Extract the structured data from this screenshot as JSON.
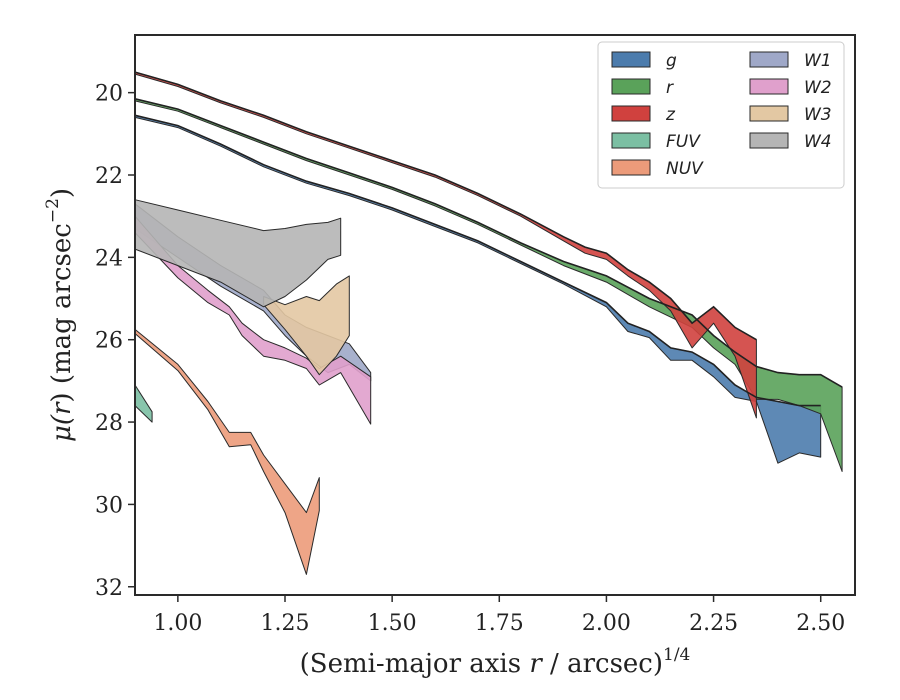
{
  "chart_data": {
    "type": "area",
    "xlabel_main": "(Semi-major axis ",
    "xlabel_var": "r",
    "xlabel_unit": " / arcsec)",
    "xlabel_exp": "1/4",
    "ylabel_mu": "μ(",
    "ylabel_var": "r",
    "ylabel_unit": ") (mag arcsec",
    "ylabel_exp": "−2",
    "ylabel_close": ")",
    "xlim": [
      0.9,
      2.58
    ],
    "ylim": [
      32.2,
      18.6
    ],
    "y_inverted": true,
    "xticks": [
      1.0,
      1.25,
      1.5,
      1.75,
      2.0,
      2.25,
      2.5
    ],
    "xtick_labels": [
      "1.00",
      "1.25",
      "1.50",
      "1.75",
      "2.00",
      "2.25",
      "2.50"
    ],
    "yticks": [
      20,
      22,
      24,
      26,
      28,
      30,
      32
    ],
    "ytick_labels": [
      "20",
      "22",
      "24",
      "26",
      "28",
      "30",
      "32"
    ],
    "legend_position": "top-right",
    "legend_columns": 2,
    "series": [
      {
        "name": "g",
        "color": "#4c7cad",
        "upper": [
          [
            0.9,
            20.55
          ],
          [
            1.0,
            20.8
          ],
          [
            1.1,
            21.25
          ],
          [
            1.2,
            21.75
          ],
          [
            1.3,
            22.15
          ],
          [
            1.4,
            22.45
          ],
          [
            1.5,
            22.8
          ],
          [
            1.6,
            23.2
          ],
          [
            1.7,
            23.6
          ],
          [
            1.8,
            24.1
          ],
          [
            1.9,
            24.6
          ],
          [
            2.0,
            25.1
          ],
          [
            2.05,
            25.6
          ],
          [
            2.1,
            25.8
          ],
          [
            2.15,
            26.2
          ],
          [
            2.2,
            26.3
          ],
          [
            2.25,
            26.6
          ],
          [
            2.3,
            27.1
          ],
          [
            2.35,
            27.4
          ],
          [
            2.4,
            27.5
          ],
          [
            2.45,
            27.6
          ],
          [
            2.5,
            27.6
          ]
        ],
        "lower": [
          [
            0.9,
            20.6
          ],
          [
            1.0,
            20.85
          ],
          [
            1.1,
            21.3
          ],
          [
            1.2,
            21.8
          ],
          [
            1.3,
            22.2
          ],
          [
            1.4,
            22.5
          ],
          [
            1.5,
            22.85
          ],
          [
            1.6,
            23.25
          ],
          [
            1.7,
            23.65
          ],
          [
            1.8,
            24.15
          ],
          [
            1.9,
            24.65
          ],
          [
            2.0,
            25.2
          ],
          [
            2.05,
            25.8
          ],
          [
            2.1,
            25.95
          ],
          [
            2.15,
            26.5
          ],
          [
            2.2,
            26.5
          ],
          [
            2.25,
            26.9
          ],
          [
            2.3,
            27.4
          ],
          [
            2.35,
            27.5
          ],
          [
            2.4,
            29.0
          ],
          [
            2.45,
            28.75
          ],
          [
            2.5,
            28.85
          ]
        ]
      },
      {
        "name": "r",
        "color": "#5aa25a",
        "upper": [
          [
            0.9,
            20.15
          ],
          [
            1.0,
            20.4
          ],
          [
            1.1,
            20.8
          ],
          [
            1.2,
            21.2
          ],
          [
            1.3,
            21.6
          ],
          [
            1.4,
            21.95
          ],
          [
            1.5,
            22.3
          ],
          [
            1.6,
            22.7
          ],
          [
            1.7,
            23.15
          ],
          [
            1.8,
            23.65
          ],
          [
            1.9,
            24.1
          ],
          [
            2.0,
            24.45
          ],
          [
            2.1,
            25.0
          ],
          [
            2.2,
            25.4
          ],
          [
            2.25,
            25.9
          ],
          [
            2.3,
            26.3
          ],
          [
            2.35,
            26.65
          ],
          [
            2.4,
            26.8
          ],
          [
            2.45,
            26.85
          ],
          [
            2.5,
            26.85
          ],
          [
            2.55,
            27.15
          ]
        ],
        "lower": [
          [
            0.9,
            20.2
          ],
          [
            1.0,
            20.45
          ],
          [
            1.1,
            20.85
          ],
          [
            1.2,
            21.25
          ],
          [
            1.3,
            21.65
          ],
          [
            1.4,
            22.0
          ],
          [
            1.5,
            22.35
          ],
          [
            1.6,
            22.75
          ],
          [
            1.7,
            23.2
          ],
          [
            1.8,
            23.7
          ],
          [
            1.9,
            24.2
          ],
          [
            2.0,
            24.6
          ],
          [
            2.1,
            25.2
          ],
          [
            2.2,
            25.7
          ],
          [
            2.25,
            26.2
          ],
          [
            2.3,
            26.6
          ],
          [
            2.35,
            27.45
          ],
          [
            2.4,
            27.45
          ],
          [
            2.45,
            27.6
          ],
          [
            2.5,
            27.8
          ],
          [
            2.55,
            29.2
          ]
        ]
      },
      {
        "name": "z",
        "color": "#d0413e",
        "upper": [
          [
            0.9,
            19.5
          ],
          [
            1.0,
            19.8
          ],
          [
            1.1,
            20.2
          ],
          [
            1.2,
            20.55
          ],
          [
            1.3,
            20.95
          ],
          [
            1.4,
            21.3
          ],
          [
            1.5,
            21.65
          ],
          [
            1.6,
            22.0
          ],
          [
            1.7,
            22.45
          ],
          [
            1.8,
            22.95
          ],
          [
            1.9,
            23.5
          ],
          [
            1.95,
            23.75
          ],
          [
            2.0,
            23.9
          ],
          [
            2.05,
            24.3
          ],
          [
            2.1,
            24.6
          ],
          [
            2.15,
            25.0
          ],
          [
            2.2,
            25.6
          ],
          [
            2.25,
            25.2
          ],
          [
            2.3,
            25.7
          ],
          [
            2.35,
            26.0
          ]
        ],
        "lower": [
          [
            0.9,
            19.55
          ],
          [
            1.0,
            19.85
          ],
          [
            1.1,
            20.25
          ],
          [
            1.2,
            20.6
          ],
          [
            1.3,
            21.0
          ],
          [
            1.4,
            21.35
          ],
          [
            1.5,
            21.7
          ],
          [
            1.6,
            22.05
          ],
          [
            1.7,
            22.5
          ],
          [
            1.8,
            23.0
          ],
          [
            1.9,
            23.6
          ],
          [
            1.95,
            23.9
          ],
          [
            2.0,
            24.05
          ],
          [
            2.05,
            24.45
          ],
          [
            2.1,
            24.8
          ],
          [
            2.15,
            25.3
          ],
          [
            2.2,
            26.2
          ],
          [
            2.25,
            25.6
          ],
          [
            2.3,
            26.4
          ],
          [
            2.35,
            27.9
          ]
        ]
      },
      {
        "name": "FUV",
        "color": "#7bbfa3",
        "upper": [
          [
            0.9,
            27.1
          ],
          [
            0.94,
            27.75
          ]
        ],
        "lower": [
          [
            0.9,
            27.6
          ],
          [
            0.94,
            28.0
          ]
        ]
      },
      {
        "name": "NUV",
        "color": "#ec9b7a",
        "upper": [
          [
            0.9,
            25.75
          ],
          [
            1.0,
            26.6
          ],
          [
            1.07,
            27.5
          ],
          [
            1.12,
            28.25
          ],
          [
            1.17,
            28.25
          ],
          [
            1.2,
            28.8
          ],
          [
            1.25,
            29.5
          ],
          [
            1.3,
            30.2
          ],
          [
            1.33,
            29.35
          ]
        ],
        "lower": [
          [
            0.9,
            25.85
          ],
          [
            1.0,
            26.75
          ],
          [
            1.07,
            27.7
          ],
          [
            1.12,
            28.6
          ],
          [
            1.17,
            28.55
          ],
          [
            1.2,
            29.2
          ],
          [
            1.25,
            30.2
          ],
          [
            1.3,
            31.7
          ],
          [
            1.33,
            30.15
          ]
        ]
      },
      {
        "name": "W1",
        "color": "#9fa8c8",
        "upper": [
          [
            0.9,
            22.7
          ],
          [
            1.0,
            23.5
          ],
          [
            1.1,
            24.2
          ],
          [
            1.2,
            24.8
          ],
          [
            1.25,
            25.4
          ],
          [
            1.3,
            25.7
          ],
          [
            1.35,
            25.9
          ],
          [
            1.4,
            26.1
          ],
          [
            1.45,
            26.8
          ]
        ],
        "lower": [
          [
            0.9,
            23.3
          ],
          [
            1.0,
            24.0
          ],
          [
            1.1,
            24.7
          ],
          [
            1.2,
            25.3
          ],
          [
            1.25,
            25.9
          ],
          [
            1.3,
            26.4
          ],
          [
            1.35,
            26.8
          ],
          [
            1.4,
            26.6
          ],
          [
            1.45,
            27.0
          ]
        ]
      },
      {
        "name": "W2",
        "color": "#e0a0cc",
        "upper": [
          [
            0.9,
            23.0
          ],
          [
            1.0,
            24.2
          ],
          [
            1.07,
            24.8
          ],
          [
            1.12,
            25.2
          ],
          [
            1.15,
            25.6
          ],
          [
            1.2,
            26.0
          ],
          [
            1.25,
            26.2
          ],
          [
            1.3,
            26.45
          ],
          [
            1.33,
            26.7
          ],
          [
            1.38,
            26.4
          ],
          [
            1.45,
            26.9
          ]
        ],
        "lower": [
          [
            0.9,
            23.4
          ],
          [
            1.0,
            24.5
          ],
          [
            1.07,
            25.1
          ],
          [
            1.12,
            25.4
          ],
          [
            1.15,
            25.9
          ],
          [
            1.2,
            26.4
          ],
          [
            1.25,
            26.5
          ],
          [
            1.3,
            26.7
          ],
          [
            1.33,
            27.1
          ],
          [
            1.38,
            26.8
          ],
          [
            1.45,
            28.05
          ]
        ]
      },
      {
        "name": "W3",
        "color": "#e3c8a3",
        "upper": [
          [
            1.2,
            24.95
          ],
          [
            1.25,
            25.15
          ],
          [
            1.3,
            24.95
          ],
          [
            1.33,
            25.05
          ],
          [
            1.37,
            24.65
          ],
          [
            1.4,
            24.45
          ]
        ],
        "lower": [
          [
            1.2,
            25.15
          ],
          [
            1.25,
            25.75
          ],
          [
            1.3,
            26.4
          ],
          [
            1.33,
            26.85
          ],
          [
            1.37,
            26.4
          ],
          [
            1.4,
            25.9
          ]
        ]
      },
      {
        "name": "W4",
        "color": "#b5b5b5",
        "upper": [
          [
            0.9,
            22.6
          ],
          [
            1.0,
            22.85
          ],
          [
            1.1,
            23.1
          ],
          [
            1.2,
            23.35
          ],
          [
            1.25,
            23.3
          ],
          [
            1.3,
            23.2
          ],
          [
            1.35,
            23.15
          ],
          [
            1.38,
            23.05
          ]
        ],
        "lower": [
          [
            0.9,
            23.8
          ],
          [
            1.0,
            24.2
          ],
          [
            1.1,
            24.6
          ],
          [
            1.2,
            25.2
          ],
          [
            1.25,
            24.95
          ],
          [
            1.3,
            24.55
          ],
          [
            1.35,
            24.05
          ],
          [
            1.38,
            23.95
          ]
        ]
      }
    ]
  }
}
